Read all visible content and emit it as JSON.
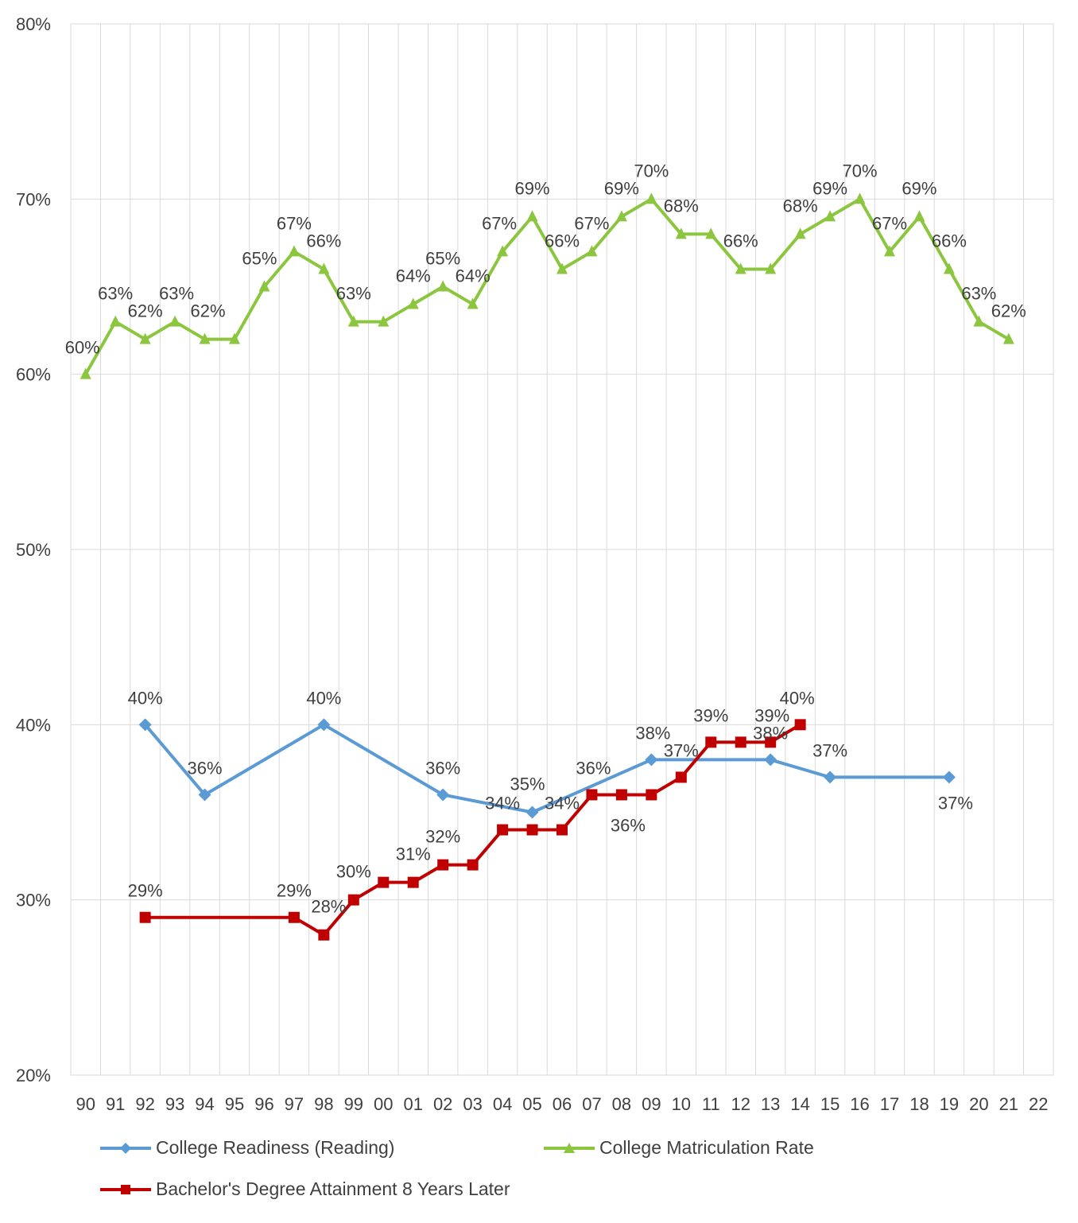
{
  "chart_data": {
    "type": "line",
    "categories": [
      "90",
      "91",
      "92",
      "93",
      "94",
      "95",
      "96",
      "97",
      "98",
      "99",
      "00",
      "01",
      "02",
      "03",
      "04",
      "05",
      "06",
      "07",
      "08",
      "09",
      "10",
      "11",
      "12",
      "13",
      "14",
      "15",
      "16",
      "17",
      "18",
      "19",
      "20",
      "21",
      "22"
    ],
    "ylim": [
      20,
      80
    ],
    "yticks": [
      "20%",
      "30%",
      "40%",
      "50%",
      "60%",
      "70%",
      "80%"
    ],
    "grid": true,
    "legend_position": "bottom",
    "series": [
      {
        "name": "College Readiness (Reading)",
        "color": "#5B9BD5",
        "marker": "diamond",
        "points": [
          {
            "x": "92",
            "y": 40,
            "label": "40%"
          },
          {
            "x": "94",
            "y": 36,
            "label": "36%"
          },
          {
            "x": "98",
            "y": 40,
            "label": "40%"
          },
          {
            "x": "02",
            "y": 36,
            "label": "36%"
          },
          {
            "x": "05",
            "y": 35,
            "label": "35%"
          },
          {
            "x": "09",
            "y": 38,
            "label": "38%"
          },
          {
            "x": "13",
            "y": 38,
            "label": "38%"
          },
          {
            "x": "15",
            "y": 37,
            "label": "37%"
          },
          {
            "x": "19",
            "y": 37,
            "label": "37%"
          }
        ]
      },
      {
        "name": "College Matriculation Rate",
        "color": "#8CC63F",
        "marker": "triangle",
        "points": [
          {
            "x": "90",
            "y": 60,
            "label": "60%"
          },
          {
            "x": "91",
            "y": 63,
            "label": "63%"
          },
          {
            "x": "92",
            "y": 62,
            "label": "62%"
          },
          {
            "x": "93",
            "y": 63,
            "label": "63%"
          },
          {
            "x": "94",
            "y": 62,
            "label": "62%"
          },
          {
            "x": "95",
            "y": 62,
            "label": ""
          },
          {
            "x": "96",
            "y": 65,
            "label": "65%"
          },
          {
            "x": "97",
            "y": 67,
            "label": "67%"
          },
          {
            "x": "98",
            "y": 66,
            "label": "66%"
          },
          {
            "x": "99",
            "y": 63,
            "label": "63%"
          },
          {
            "x": "00",
            "y": 63,
            "label": ""
          },
          {
            "x": "01",
            "y": 64,
            "label": "64%"
          },
          {
            "x": "02",
            "y": 65,
            "label": "65%"
          },
          {
            "x": "03",
            "y": 64,
            "label": "64%"
          },
          {
            "x": "04",
            "y": 67,
            "label": "67%"
          },
          {
            "x": "05",
            "y": 69,
            "label": "69%"
          },
          {
            "x": "06",
            "y": 66,
            "label": "66%"
          },
          {
            "x": "07",
            "y": 67,
            "label": "67%"
          },
          {
            "x": "08",
            "y": 69,
            "label": "69%"
          },
          {
            "x": "09",
            "y": 70,
            "label": "70%"
          },
          {
            "x": "10",
            "y": 68,
            "label": "68%"
          },
          {
            "x": "11",
            "y": 68,
            "label": ""
          },
          {
            "x": "12",
            "y": 66,
            "label": "66%"
          },
          {
            "x": "13",
            "y": 66,
            "label": ""
          },
          {
            "x": "14",
            "y": 68,
            "label": "68%"
          },
          {
            "x": "15",
            "y": 69,
            "label": "69%"
          },
          {
            "x": "16",
            "y": 70,
            "label": "70%"
          },
          {
            "x": "17",
            "y": 67,
            "label": "67%"
          },
          {
            "x": "18",
            "y": 69,
            "label": "69%"
          },
          {
            "x": "19",
            "y": 66,
            "label": "66%"
          },
          {
            "x": "20",
            "y": 63,
            "label": "63%"
          },
          {
            "x": "21",
            "y": 62,
            "label": "62%"
          }
        ]
      },
      {
        "name": "Bachelor's Degree Attainment 8 Years Later",
        "color": "#C00000",
        "marker": "square",
        "points": [
          {
            "x": "92",
            "y": 29,
            "label": "29%"
          },
          {
            "x": "97",
            "y": 29,
            "label": "29%"
          },
          {
            "x": "98",
            "y": 28,
            "label": "28%"
          },
          {
            "x": "99",
            "y": 30,
            "label": "30%"
          },
          {
            "x": "00",
            "y": 31,
            "label": ""
          },
          {
            "x": "01",
            "y": 31,
            "label": "31%"
          },
          {
            "x": "02",
            "y": 32,
            "label": "32%"
          },
          {
            "x": "03",
            "y": 32,
            "label": ""
          },
          {
            "x": "04",
            "y": 34,
            "label": "34%"
          },
          {
            "x": "05",
            "y": 34,
            "label": ""
          },
          {
            "x": "06",
            "y": 34,
            "label": "34%"
          },
          {
            "x": "07",
            "y": 36,
            "label": "36%"
          },
          {
            "x": "08",
            "y": 36,
            "label": "36%"
          },
          {
            "x": "09",
            "y": 36,
            "label": ""
          },
          {
            "x": "10",
            "y": 37,
            "label": "37%"
          },
          {
            "x": "11",
            "y": 39,
            "label": "39%"
          },
          {
            "x": "12",
            "y": 39,
            "label": ""
          },
          {
            "x": "13",
            "y": 39,
            "label": "39%"
          },
          {
            "x": "14",
            "y": 40,
            "label": "40%"
          }
        ]
      }
    ]
  }
}
